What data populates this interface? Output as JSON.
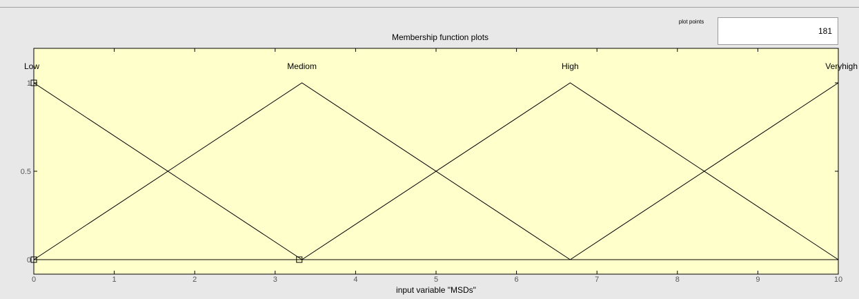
{
  "panel": {
    "title": "Membership function plots",
    "plot_points_label": "plot points",
    "plot_points_value": "181"
  },
  "colors": {
    "plot_background": "#ffffcc",
    "panel_background": "#e8e8e8",
    "line": "#000000",
    "tick_label": "#555555"
  },
  "chart_data": {
    "type": "line",
    "title": "Membership function plots",
    "xlabel": "input variable \"MSDs\"",
    "ylabel": "",
    "xlim": [
      0,
      10
    ],
    "ylim": [
      0,
      1
    ],
    "x_ticks": [
      0,
      1,
      2,
      3,
      4,
      5,
      6,
      7,
      8,
      9,
      10
    ],
    "x_tick_labels": [
      "0",
      "1",
      "2",
      "3",
      "4",
      "5",
      "6",
      "7",
      "8",
      "9",
      "10"
    ],
    "y_ticks": [
      0,
      0.5,
      1
    ],
    "y_tick_labels": [
      "0",
      "0.5",
      "1"
    ],
    "grid": false,
    "series": [
      {
        "name": "Low",
        "x": [
          0,
          0,
          3.333
        ],
        "y": [
          0,
          1,
          0
        ]
      },
      {
        "name": "Mediom",
        "x": [
          0,
          3.333,
          6.667
        ],
        "y": [
          0,
          1,
          0
        ]
      },
      {
        "name": "High",
        "x": [
          3.333,
          6.667,
          10
        ],
        "y": [
          0,
          1,
          0
        ]
      },
      {
        "name": "Veryhigh",
        "x": [
          6.667,
          10,
          10
        ],
        "y": [
          0,
          1,
          0
        ]
      }
    ],
    "markers": [
      {
        "x": 0,
        "y": 1
      },
      {
        "x": 0,
        "y": 0
      },
      {
        "x": 3.3,
        "y": 0
      }
    ]
  }
}
